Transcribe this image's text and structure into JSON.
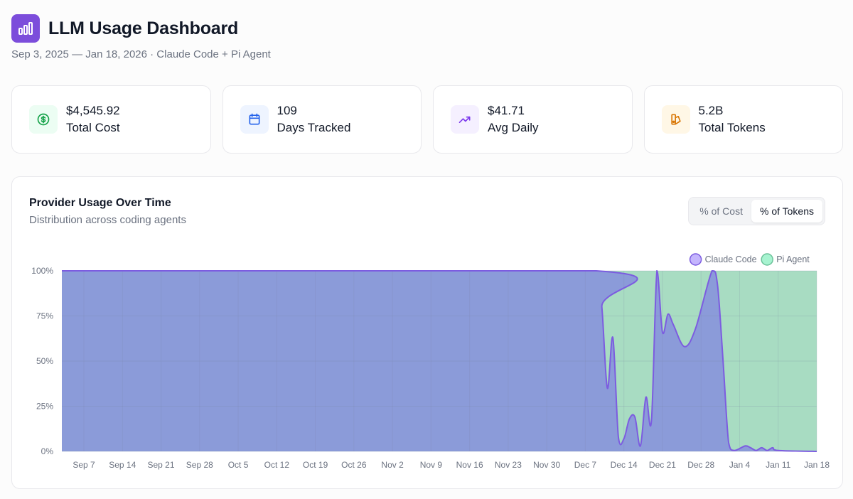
{
  "header": {
    "title": "LLM Usage Dashboard",
    "subtitle": "Sep 3, 2025 — Jan 18, 2026 · Claude Code + Pi Agent",
    "logo_icon": "bar-chart-icon"
  },
  "stats": [
    {
      "value": "$4,545.92",
      "label": "Total Cost",
      "icon": "dollar-icon",
      "color": "#16a34a",
      "bg": "#ecfdf3"
    },
    {
      "value": "109",
      "label": "Days Tracked",
      "icon": "calendar-icon",
      "color": "#2563eb",
      "bg": "#eef4ff"
    },
    {
      "value": "$41.71",
      "label": "Avg Daily",
      "icon": "trending-up-icon",
      "color": "#7c3aed",
      "bg": "#f5f0ff"
    },
    {
      "value": "5.2B",
      "label": "Total Tokens",
      "icon": "coins-icon",
      "color": "#d97706",
      "bg": "#fff7e6"
    }
  ],
  "chart_card": {
    "title": "Provider Usage Over Time",
    "subtitle": "Distribution across coding agents",
    "toggle": [
      {
        "label": "% of Cost",
        "active": false
      },
      {
        "label": "% of Tokens",
        "active": true
      }
    ]
  },
  "chart_data": {
    "type": "area",
    "stacked": true,
    "y_format": "percent",
    "ylim": [
      0,
      100
    ],
    "y_ticks": [
      "0%",
      "25%",
      "50%",
      "75%",
      "100%"
    ],
    "x_ticks": [
      "Sep 7",
      "Sep 14",
      "Sep 21",
      "Sep 28",
      "Oct 5",
      "Oct 12",
      "Oct 19",
      "Oct 26",
      "Nov 2",
      "Nov 9",
      "Nov 16",
      "Nov 23",
      "Nov 30",
      "Dec 7",
      "Dec 14",
      "Dec 21",
      "Dec 28",
      "Jan 4",
      "Jan 11",
      "Jan 18"
    ],
    "x_range": [
      "2025-09-03",
      "2026-01-18"
    ],
    "legend_position": "top-right",
    "grid": true,
    "series": [
      {
        "name": "Claude Code",
        "color": "#8b9bd9",
        "line": "#7c5ce0",
        "legend_color": "#c4b5fd",
        "points": [
          [
            "2025-09-03",
            100
          ],
          [
            "2025-12-09",
            100
          ],
          [
            "2025-12-10",
            80
          ],
          [
            "2025-12-11",
            35
          ],
          [
            "2025-12-12",
            63
          ],
          [
            "2025-12-13",
            8
          ],
          [
            "2025-12-14",
            7
          ],
          [
            "2025-12-15",
            18
          ],
          [
            "2025-12-16",
            19
          ],
          [
            "2025-12-17",
            3
          ],
          [
            "2025-12-18",
            30
          ],
          [
            "2025-12-19",
            17
          ],
          [
            "2025-12-20",
            100
          ],
          [
            "2025-12-21",
            66
          ],
          [
            "2025-12-22",
            76
          ],
          [
            "2025-12-23",
            70
          ],
          [
            "2025-12-25",
            58
          ],
          [
            "2025-12-27",
            68
          ],
          [
            "2025-12-30",
            100
          ],
          [
            "2025-12-31",
            92
          ],
          [
            "2026-01-01",
            50
          ],
          [
            "2026-01-02",
            5
          ],
          [
            "2026-01-03",
            0.5
          ],
          [
            "2026-01-05",
            3
          ],
          [
            "2026-01-06",
            2
          ],
          [
            "2026-01-07",
            0.5
          ],
          [
            "2026-01-08",
            2
          ],
          [
            "2026-01-09",
            0.5
          ],
          [
            "2026-01-10",
            2
          ],
          [
            "2026-01-11",
            0.5
          ],
          [
            "2026-01-18",
            0
          ]
        ]
      },
      {
        "name": "Pi Agent",
        "color": "#a8dcc2",
        "legend_color": "#a7f3d0",
        "complement_of": "Claude Code"
      }
    ]
  }
}
